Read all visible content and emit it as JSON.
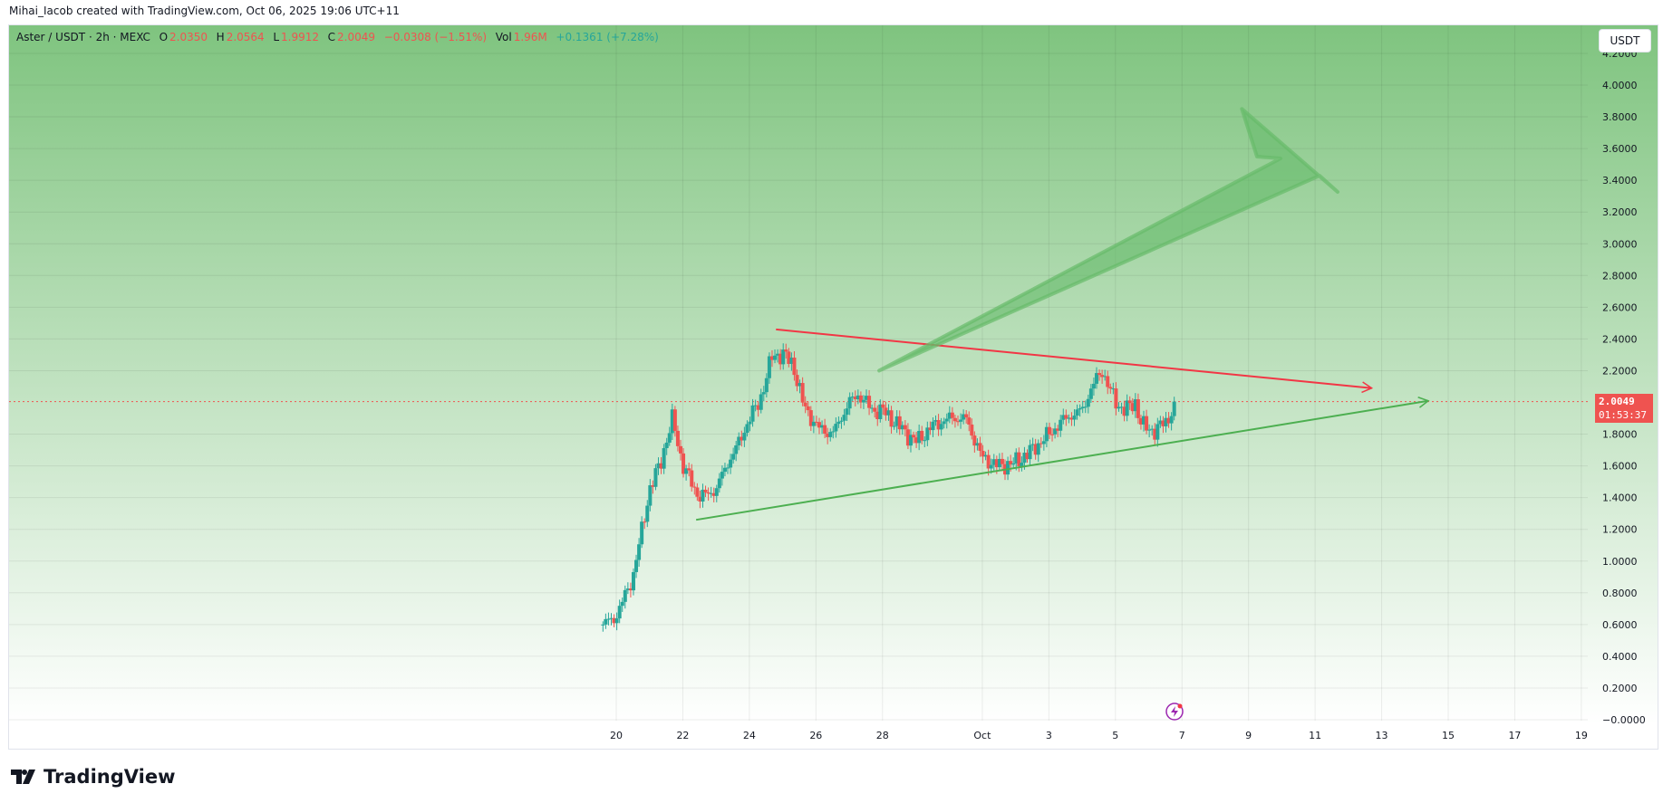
{
  "attribution": "Mihai_Iacob created with TradingView.com, Oct 06, 2025 19:06 UTC+11",
  "legend": {
    "symbol": "Aster / USDT · 2h · MEXC",
    "o_label": "O",
    "o": "2.0350",
    "h_label": "H",
    "h": "2.0564",
    "l_label": "L",
    "l": "1.9912",
    "c_label": "C",
    "c": "2.0049",
    "change": "−0.0308 (−1.51%)",
    "vol_label": "Vol",
    "vol": "1.96M",
    "vol_change": "+0.1361 (+7.28%)"
  },
  "currency_button": "USDT",
  "last_price": {
    "price": "2.0049",
    "countdown": "01:53:37"
  },
  "logo_text": "TradingView",
  "colors": {
    "up": "#26a69a",
    "down": "#ef5350",
    "resistance": "#f23645",
    "support": "#4caf50",
    "arrow": "#66bb6a",
    "bg_top": "#7fc47f",
    "bg_bottom": "#ffffff"
  },
  "chart_data": {
    "type": "candlestick",
    "title": "Aster / USDT · 2h · MEXC",
    "x_origin": "Sep 20",
    "x_unit": "days",
    "xlim": [
      -15.6,
      31.5
    ],
    "ylim": [
      -0.0,
      4.2
    ],
    "grid": true,
    "y_ticks": [
      "-0.0000",
      "0.2000",
      "0.4000",
      "0.6000",
      "0.8000",
      "1.0000",
      "1.2000",
      "1.4000",
      "1.6000",
      "1.8000",
      "2.2000",
      "2.4000",
      "2.6000",
      "2.8000",
      "3.0000",
      "3.2000",
      "3.4000",
      "3.6000",
      "3.8000",
      "4.0000",
      "4.2000"
    ],
    "x_ticks": [
      {
        "day": 0,
        "label": "20"
      },
      {
        "day": 2,
        "label": "22"
      },
      {
        "day": 4,
        "label": "24"
      },
      {
        "day": 6,
        "label": "26"
      },
      {
        "day": 8,
        "label": "28"
      },
      {
        "day": 11,
        "label": "Oct"
      },
      {
        "day": 13,
        "label": "3"
      },
      {
        "day": 15,
        "label": "5"
      },
      {
        "day": 17,
        "label": "7"
      },
      {
        "day": 19,
        "label": "9"
      },
      {
        "day": 21,
        "label": "11"
      },
      {
        "day": 23,
        "label": "13"
      },
      {
        "day": 25,
        "label": "15"
      },
      {
        "day": 27,
        "label": "17"
      },
      {
        "day": 29,
        "label": "19"
      }
    ],
    "candle_interval_hours": 2,
    "close_path": [
      [
        -0.4,
        0.6
      ],
      [
        0,
        0.65
      ],
      [
        0.5,
        0.9
      ],
      [
        1,
        1.45
      ],
      [
        1.3,
        1.6
      ],
      [
        1.7,
        1.9
      ],
      [
        2,
        1.6
      ],
      [
        2.5,
        1.4
      ],
      [
        3,
        1.45
      ],
      [
        3.3,
        1.6
      ],
      [
        3.7,
        1.75
      ],
      [
        4,
        1.9
      ],
      [
        4.3,
        2.0
      ],
      [
        4.7,
        2.3
      ],
      [
        5,
        2.3
      ],
      [
        5.3,
        2.25
      ],
      [
        5.6,
        2.0
      ],
      [
        6,
        1.85
      ],
      [
        6.5,
        1.8
      ],
      [
        7,
        2.0
      ],
      [
        7.3,
        2.05
      ],
      [
        7.7,
        1.95
      ],
      [
        8,
        1.95
      ],
      [
        8.5,
        1.85
      ],
      [
        9,
        1.75
      ],
      [
        9.5,
        1.85
      ],
      [
        10,
        1.9
      ],
      [
        10.5,
        1.9
      ],
      [
        11,
        1.65
      ],
      [
        11.5,
        1.6
      ],
      [
        12,
        1.62
      ],
      [
        12.5,
        1.7
      ],
      [
        13,
        1.8
      ],
      [
        13.5,
        1.9
      ],
      [
        14,
        1.95
      ],
      [
        14.3,
        2.1
      ],
      [
        14.6,
        2.2
      ],
      [
        15,
        2.0
      ],
      [
        15.3,
        1.95
      ],
      [
        15.6,
        2.0
      ],
      [
        15.8,
        1.85
      ],
      [
        16.2,
        1.82
      ],
      [
        16.6,
        1.9
      ],
      [
        16.8,
        2.0049
      ]
    ],
    "last_price": 2.0049,
    "annotations": [
      {
        "type": "trendline",
        "name": "resistance",
        "from": [
          4.8,
          2.46
        ],
        "to": [
          22.7,
          2.09
        ],
        "arrow": true
      },
      {
        "type": "trendline",
        "name": "support",
        "from": [
          2.4,
          1.26
        ],
        "to": [
          24.4,
          2.01
        ],
        "arrow": true
      },
      {
        "type": "arrow",
        "name": "breakout-target",
        "from": [
          7.9,
          2.2
        ],
        "to": [
          18.8,
          3.85
        ]
      }
    ]
  }
}
